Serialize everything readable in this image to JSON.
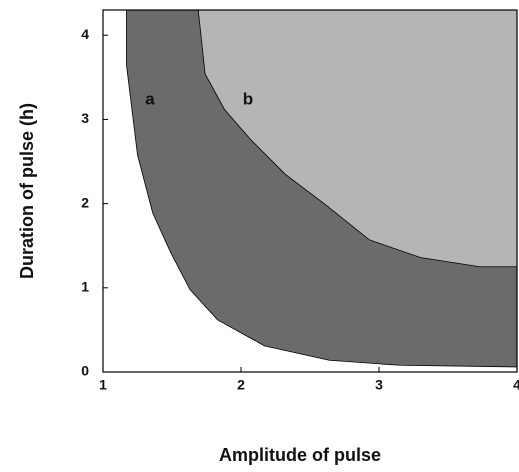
{
  "chart_data": {
    "type": "area",
    "xlabel": "Amplitude of pulse",
    "ylabel": "Duration of pulse (h)",
    "xlim": [
      1,
      4
    ],
    "ylim": [
      0,
      4.3
    ],
    "xticks": [
      1,
      2,
      3,
      4
    ],
    "yticks": [
      0,
      1,
      2,
      3,
      4
    ],
    "series": [
      {
        "name": "a",
        "color": "#6b6b6b",
        "x": [
          1.17,
          1.17,
          1.25,
          1.36,
          1.49,
          1.63,
          1.83,
          2.17,
          2.64,
          3.15,
          4
        ],
        "values": [
          4.3,
          3.65,
          2.58,
          1.89,
          1.42,
          0.98,
          0.62,
          0.31,
          0.14,
          0.08,
          0.06
        ]
      },
      {
        "name": "b",
        "color": "#b5b5b5",
        "x": [
          1.69,
          1.74,
          1.88,
          2.07,
          2.32,
          2.61,
          2.93,
          3.3,
          3.73,
          4
        ],
        "values": [
          4.3,
          3.54,
          3.12,
          2.76,
          2.35,
          1.99,
          1.57,
          1.36,
          1.25,
          1.25
        ]
      }
    ]
  }
}
